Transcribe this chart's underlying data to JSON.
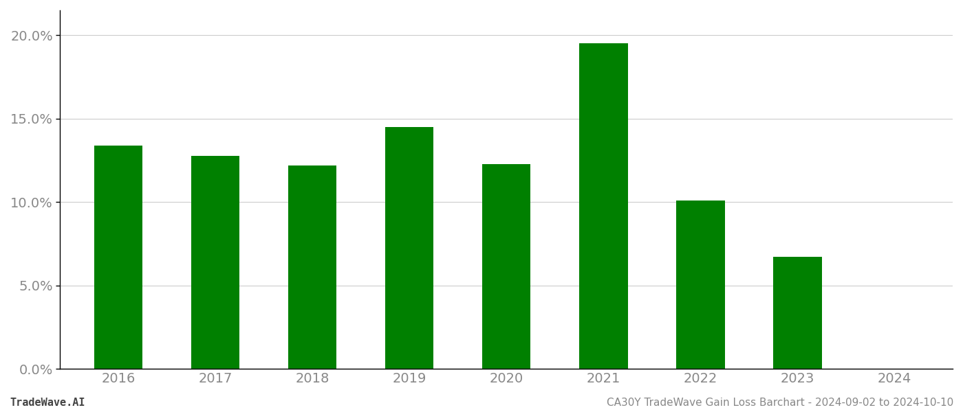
{
  "years": [
    "2016",
    "2017",
    "2018",
    "2019",
    "2020",
    "2021",
    "2022",
    "2023",
    "2024"
  ],
  "values": [
    0.134,
    0.1278,
    0.122,
    0.145,
    0.1228,
    0.1953,
    0.101,
    0.067,
    0.0
  ],
  "bar_color": "#008000",
  "background_color": "#ffffff",
  "grid_color": "#cccccc",
  "ylim": [
    0,
    0.215
  ],
  "yticks": [
    0.0,
    0.05,
    0.1,
    0.15,
    0.2
  ],
  "ytick_labels": [
    "0.0%",
    "5.0%",
    "10.0%",
    "15.0%",
    "20.0%"
  ],
  "footer_left": "TradeWave.AI",
  "footer_right": "CA30Y TradeWave Gain Loss Barchart - 2024-09-02 to 2024-10-10",
  "tick_fontsize": 14,
  "footer_fontsize": 11
}
